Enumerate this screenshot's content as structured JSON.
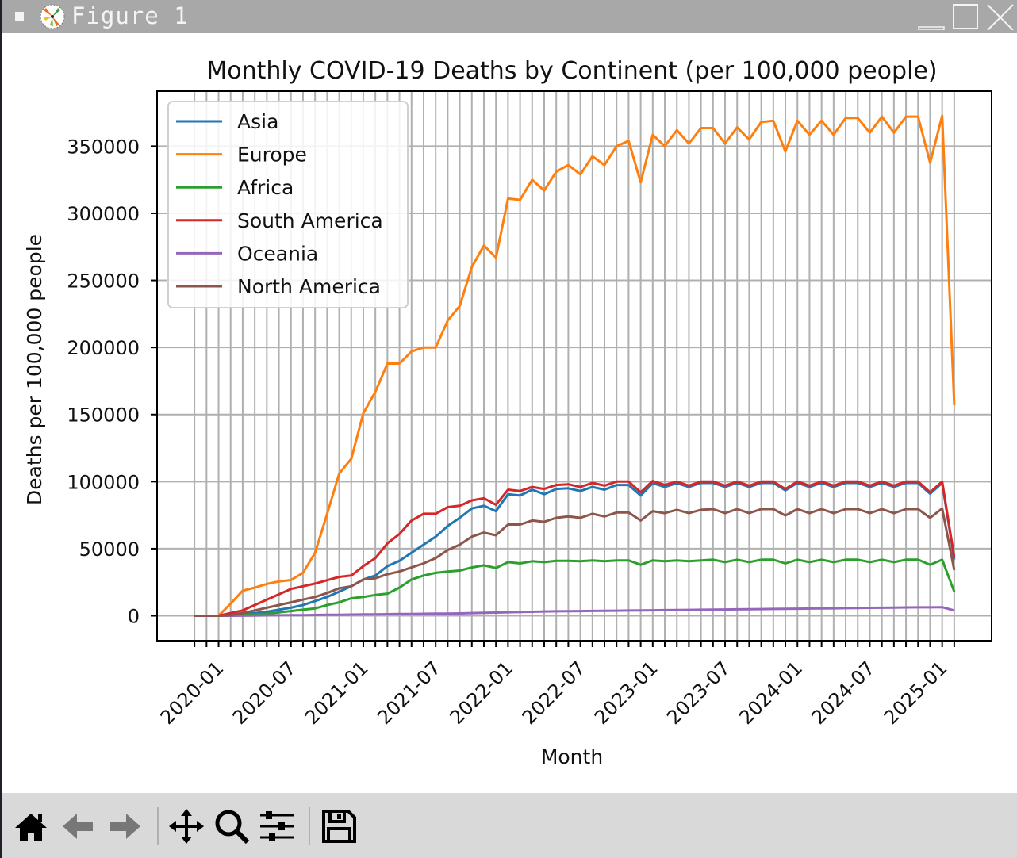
{
  "window": {
    "title": "Figure 1"
  },
  "toolbar": {
    "items": [
      "home-icon",
      "back-arrow-icon",
      "forward-arrow-icon",
      "pan-move-icon",
      "zoom-magnifier-icon",
      "configure-subplots-icon",
      "save-floppy-icon"
    ]
  },
  "colors": {
    "Asia": "#1f77b4",
    "Europe": "#ff7f0e",
    "Africa": "#2ca02c",
    "South America": "#d62728",
    "Oceania": "#9467bd",
    "North America": "#8c564b",
    "grid": "#b0b0b0"
  },
  "chart_data": {
    "type": "line",
    "title": "Monthly COVID-19 Deaths by Continent (per 100,000 people)",
    "xlabel": "Month",
    "ylabel": "Deaths per 100,000 people",
    "grid": true,
    "legend_position": "upper-left",
    "ylim": [
      -18600,
      391000
    ],
    "xlim_months": [
      -3.1,
      66.1
    ],
    "yticks": [
      0,
      50000,
      100000,
      150000,
      200000,
      250000,
      300000,
      350000
    ],
    "ytick_labels": [
      "0",
      "50000",
      "100000",
      "150000",
      "200000",
      "250000",
      "300000",
      "350000"
    ],
    "xtick_labels": [
      "2020-01",
      "2020-07",
      "2021-01",
      "2021-07",
      "2022-01",
      "2022-07",
      "2023-01",
      "2023-07",
      "2024-01",
      "2024-07",
      "2025-01"
    ],
    "xtick_index": [
      0,
      6,
      12,
      18,
      24,
      30,
      36,
      42,
      48,
      54,
      60
    ],
    "x": [
      "2020-01",
      "2020-02",
      "2020-03",
      "2020-04",
      "2020-05",
      "2020-06",
      "2020-07",
      "2020-08",
      "2020-09",
      "2020-10",
      "2020-11",
      "2020-12",
      "2021-01",
      "2021-02",
      "2021-03",
      "2021-04",
      "2021-05",
      "2021-06",
      "2021-07",
      "2021-08",
      "2021-09",
      "2021-10",
      "2021-11",
      "2021-12",
      "2022-01",
      "2022-02",
      "2022-03",
      "2022-04",
      "2022-05",
      "2022-06",
      "2022-07",
      "2022-08",
      "2022-09",
      "2022-10",
      "2022-11",
      "2022-12",
      "2023-01",
      "2023-02",
      "2023-03",
      "2023-04",
      "2023-05",
      "2023-06",
      "2023-07",
      "2023-08",
      "2023-09",
      "2023-10",
      "2023-11",
      "2023-12",
      "2024-01",
      "2024-02",
      "2024-03",
      "2024-04",
      "2024-05",
      "2024-06",
      "2024-07",
      "2024-08",
      "2024-09",
      "2024-10",
      "2024-11",
      "2024-12",
      "2025-01",
      "2025-02",
      "2025-03",
      "2025-04"
    ],
    "series": [
      {
        "name": "Asia",
        "values": [
          0,
          0,
          0,
          500,
          1000,
          2000,
          3000,
          4500,
          6000,
          8000,
          11000,
          14000,
          18000,
          22000,
          27000,
          30000,
          37000,
          41000,
          47000,
          53000,
          59000,
          67000,
          73000,
          80000,
          82000,
          78000,
          90600,
          89600,
          94000,
          90600,
          94500,
          95000,
          93000,
          96000,
          94000,
          97500,
          97500,
          89600,
          98700,
          96000,
          98700,
          96000,
          99000,
          99000,
          96000,
          99000,
          96000,
          99000,
          99000,
          93500,
          99000,
          96000,
          99000,
          96000,
          99000,
          99000,
          96000,
          99000,
          96000,
          99000,
          99000,
          91000,
          99000,
          42000
        ]
      },
      {
        "name": "Europe",
        "values": [
          0,
          0,
          0,
          9000,
          18700,
          21000,
          23700,
          25600,
          26600,
          32000,
          47000,
          76000,
          106000,
          117000,
          151000,
          167000,
          188000,
          188000,
          197000,
          200000,
          200000,
          220000,
          231000,
          260000,
          276000,
          267000,
          311000,
          310000,
          325000,
          317000,
          331000,
          336000,
          329000,
          342500,
          336000,
          350000,
          354000,
          323000,
          358500,
          350000,
          362000,
          352000,
          363500,
          363500,
          352000,
          364000,
          355000,
          368000,
          369000,
          346000,
          369000,
          358500,
          369000,
          358500,
          371000,
          371000,
          360000,
          372000,
          360000,
          372000,
          372000,
          337600,
          372700,
          157000
        ]
      },
      {
        "name": "Africa",
        "values": [
          0,
          0,
          0,
          0,
          500,
          1000,
          1500,
          2500,
          3500,
          4500,
          5500,
          8000,
          10000,
          13000,
          14000,
          15500,
          16500,
          21000,
          27000,
          30000,
          32000,
          33000,
          33700,
          36000,
          37600,
          35600,
          40000,
          39000,
          40600,
          40000,
          41000,
          41000,
          40600,
          41300,
          40600,
          41300,
          41300,
          38000,
          41300,
          40600,
          41300,
          40600,
          41300,
          41800,
          40000,
          41800,
          40000,
          41800,
          41800,
          39000,
          41800,
          40000,
          41800,
          40000,
          41800,
          41800,
          40000,
          41800,
          40000,
          41800,
          41800,
          38000,
          41800,
          18000
        ]
      },
      {
        "name": "South America",
        "values": [
          0,
          0,
          0,
          2000,
          4000,
          8000,
          12000,
          16000,
          20000,
          22000,
          24000,
          26500,
          29000,
          30000,
          37000,
          43000,
          54000,
          61000,
          71000,
          76000,
          76000,
          81000,
          82000,
          86000,
          87600,
          82700,
          94000,
          93000,
          96000,
          94500,
          97500,
          98000,
          96000,
          99000,
          97000,
          100000,
          100000,
          92000,
          100500,
          97500,
          100000,
          97000,
          100000,
          100000,
          97000,
          100000,
          97000,
          100000,
          100000,
          94500,
          100000,
          97000,
          100000,
          97000,
          100000,
          100000,
          97000,
          100000,
          97000,
          100000,
          100000,
          92000,
          100000,
          43500
        ]
      },
      {
        "name": "Oceania",
        "values": [
          0,
          0,
          0,
          0,
          100,
          200,
          300,
          400,
          500,
          500,
          600,
          700,
          800,
          900,
          1000,
          1100,
          1200,
          1300,
          1400,
          1500,
          1600,
          1700,
          1800,
          2000,
          2200,
          2400,
          2600,
          2800,
          3000,
          3200,
          3300,
          3400,
          3500,
          3600,
          3700,
          3800,
          3900,
          4000,
          4100,
          4200,
          4300,
          4400,
          4500,
          4600,
          4700,
          4800,
          4900,
          5000,
          5100,
          5200,
          5300,
          5400,
          5500,
          5600,
          5700,
          5800,
          5900,
          6000,
          6100,
          6200,
          6300,
          6300,
          6400,
          4000
        ]
      },
      {
        "name": "North America",
        "values": [
          0,
          0,
          0,
          500,
          2000,
          4000,
          6000,
          8000,
          10000,
          12000,
          14000,
          17000,
          20500,
          22000,
          27000,
          28000,
          31000,
          33000,
          36000,
          39000,
          43000,
          49000,
          53000,
          59000,
          62000,
          60000,
          68000,
          68000,
          71000,
          70000,
          73000,
          74000,
          73000,
          76000,
          74000,
          77000,
          77000,
          71000,
          78000,
          76500,
          79000,
          76500,
          79000,
          79500,
          76500,
          79500,
          76500,
          79500,
          79500,
          74700,
          79500,
          76500,
          79500,
          76500,
          79500,
          79500,
          76500,
          79500,
          76500,
          79500,
          79500,
          73000,
          80000,
          34000
        ]
      }
    ]
  }
}
